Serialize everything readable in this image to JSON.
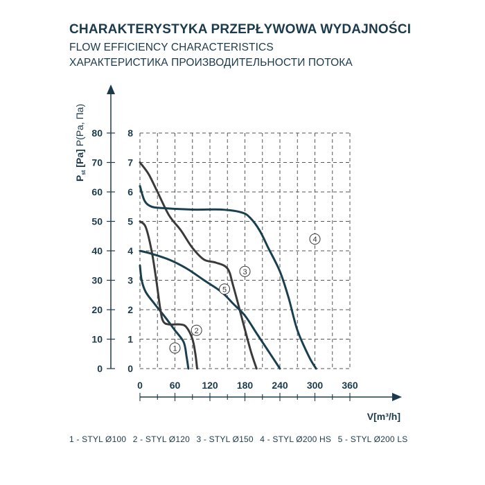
{
  "header": {
    "title_pl": "CHARAKTERYSTYKA PRZEPŁYWOWA WYDAJNOŚCI",
    "title_en": "FLOW EFFICIENCY CHARACTERISTICS",
    "title_ru": "ХАРАКТЕРИСТИКА ПРОИЗВОДИТЕЛЬНОСТИ ПОТОКА"
  },
  "legend": [
    "1 - STYL Ø100",
    "2 - STYL Ø120",
    "3 - STYL Ø150",
    "4 - STYL Ø200 HS",
    "5 - STYL Ø200 LS"
  ],
  "colors": {
    "curve_dark_teal": "#1a3f4f",
    "curve_dark_gray": "#3a3a3a",
    "axis": "#1b3a4b",
    "grid": "#555555"
  },
  "chart_data": {
    "type": "line",
    "xlabel_main": "V",
    "xlabel_unit": "[m³/h]",
    "ylabel_main": "P",
    "ylabel_sub": "st",
    "ylabel_unit": "[Pa]",
    "ylabel_alt": "P(Pa, Па)",
    "xlim": [
      0,
      360
    ],
    "ylim_pa": [
      0,
      80
    ],
    "ylim_mmh2o": [
      0,
      8
    ],
    "x_ticks": [
      0,
      60,
      120,
      180,
      240,
      300,
      360
    ],
    "y_ticks_outer": [
      0,
      10,
      20,
      30,
      40,
      50,
      60,
      70,
      80
    ],
    "y_ticks_inner": [
      0,
      1,
      2,
      3,
      4,
      5,
      6,
      7,
      8
    ],
    "x_grid_lines": [
      0,
      30,
      60,
      90,
      120,
      150,
      180,
      210,
      240,
      270,
      300,
      330,
      360
    ],
    "series": [
      {
        "name": "1",
        "color": "#1a3f4f",
        "label_at": [
          60,
          7
        ],
        "points": [
          [
            0,
            35
          ],
          [
            3,
            30
          ],
          [
            10,
            26
          ],
          [
            25,
            22
          ],
          [
            45,
            17
          ],
          [
            60,
            13
          ],
          [
            75,
            9
          ],
          [
            80,
            4
          ],
          [
            83,
            0
          ]
        ]
      },
      {
        "name": "2",
        "color": "#3a3a3a",
        "label_at": [
          97,
          13
        ],
        "points": [
          [
            0,
            50
          ],
          [
            10,
            48
          ],
          [
            20,
            40
          ],
          [
            28,
            30
          ],
          [
            35,
            20
          ],
          [
            40,
            16
          ],
          [
            50,
            15
          ],
          [
            70,
            15
          ],
          [
            80,
            14
          ],
          [
            90,
            10
          ],
          [
            95,
            5
          ],
          [
            98,
            0
          ]
        ]
      },
      {
        "name": "3",
        "color": "#3a3a3a",
        "label_at": [
          180,
          33
        ],
        "points": [
          [
            0,
            70
          ],
          [
            15,
            66
          ],
          [
            30,
            60
          ],
          [
            50,
            52
          ],
          [
            70,
            47
          ],
          [
            90,
            41
          ],
          [
            110,
            37
          ],
          [
            130,
            36
          ],
          [
            150,
            34
          ],
          [
            160,
            28
          ],
          [
            175,
            17
          ],
          [
            190,
            6
          ],
          [
            200,
            0
          ]
        ]
      },
      {
        "name": "4",
        "color": "#1a3f4f",
        "label_at": [
          300,
          44
        ],
        "points": [
          [
            0,
            62
          ],
          [
            8,
            57
          ],
          [
            20,
            55
          ],
          [
            40,
            54.5
          ],
          [
            90,
            54
          ],
          [
            140,
            54
          ],
          [
            175,
            53
          ],
          [
            190,
            51
          ],
          [
            205,
            47
          ],
          [
            220,
            41
          ],
          [
            240,
            33
          ],
          [
            255,
            24
          ],
          [
            270,
            13
          ],
          [
            290,
            4
          ],
          [
            302,
            0
          ]
        ]
      },
      {
        "name": "5",
        "color": "#1a3f4f",
        "label_at": [
          145,
          27
        ],
        "points": [
          [
            0,
            40
          ],
          [
            20,
            39
          ],
          [
            50,
            37
          ],
          [
            80,
            34
          ],
          [
            110,
            30
          ],
          [
            140,
            26
          ],
          [
            160,
            22
          ],
          [
            180,
            18
          ],
          [
            200,
            12
          ],
          [
            220,
            6
          ],
          [
            240,
            0
          ]
        ]
      }
    ]
  }
}
